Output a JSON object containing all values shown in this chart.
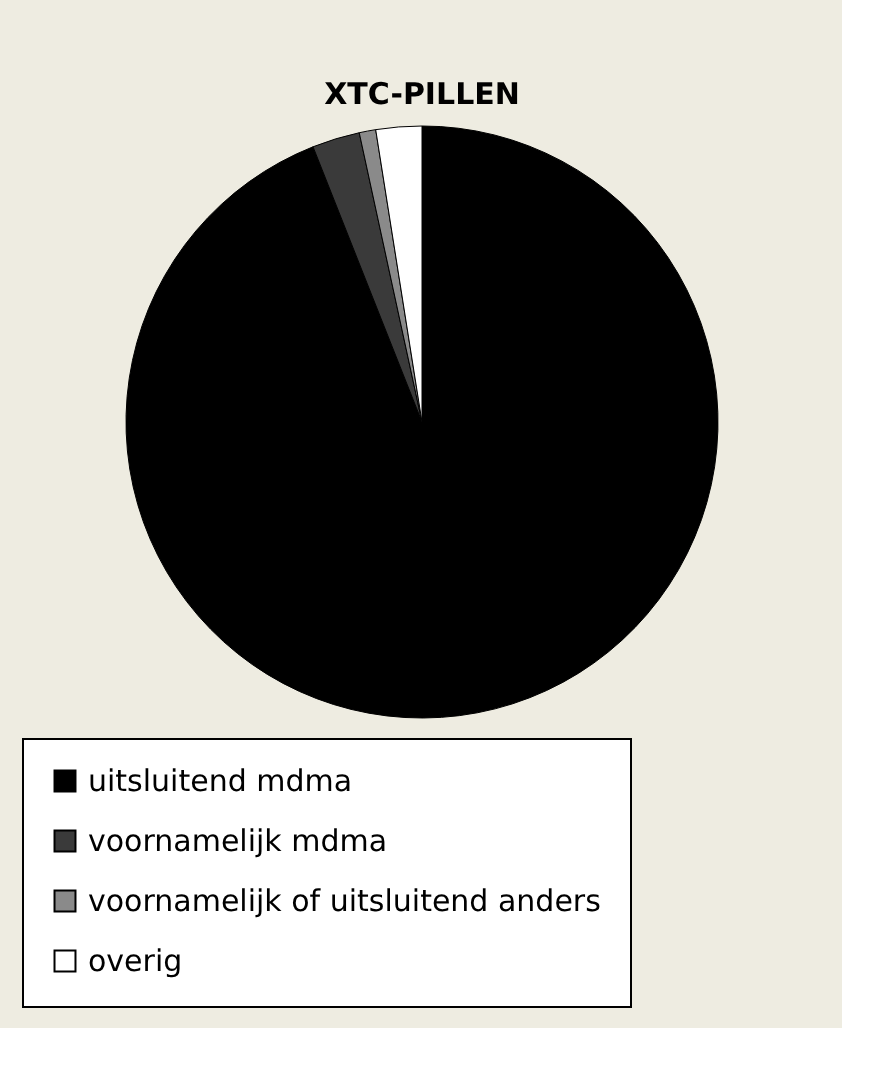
{
  "chart_data": {
    "type": "pie",
    "title": "XTC-PILLEN",
    "categories": [
      "uitsluitend mdma",
      "voornamelijk mdma",
      "voornamelijk of uitsluitend anders",
      "overig"
    ],
    "values": [
      94,
      2.6,
      0.9,
      2.5
    ],
    "colors": [
      "#000000",
      "#3a3a3a",
      "#8a8a8a",
      "#ffffff"
    ],
    "legend": "bottom"
  }
}
